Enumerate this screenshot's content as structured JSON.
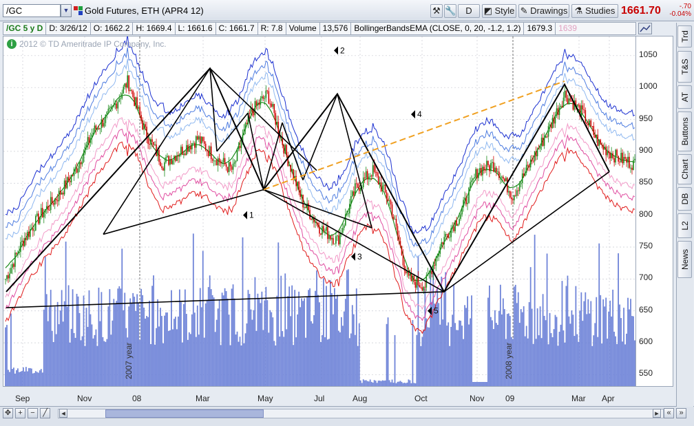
{
  "toolbar": {
    "symbol": "/GC",
    "description": "Gold Futures, ETH (APR4 12)",
    "d_button": "D",
    "style_label": "Style",
    "drawings_label": "Drawings",
    "studies_label": "Studies",
    "last_price": "1661.70",
    "change": "-.70",
    "change_pct": "-0.04%"
  },
  "infobar": {
    "chart_id": "/GC 5 y D",
    "date": "D: 3/26/12",
    "open": "O: 1662.2",
    "high": "H: 1669.4",
    "low": "L: 1661.6",
    "close": "C: 1661.7",
    "range": "R: 7.8",
    "volume_label": "Volume",
    "volume_value": "13,576",
    "study": "BollingerBandsEMA (CLOSE, 0, 20, -1.2, 1.2)",
    "study_val1": "1679.3",
    "study_val2": "1639"
  },
  "chart": {
    "copyright": "2012 © TD Ameritrade IP Company, Inc.",
    "y_labels": [
      "1050",
      "1000",
      "950",
      "900",
      "850",
      "800",
      "750",
      "700",
      "650",
      "600",
      "550"
    ],
    "x_labels": [
      "Sep",
      "Nov",
      "08",
      "Mar",
      "May",
      "Jul",
      "Aug",
      "Oct",
      "Nov",
      "09",
      "Mar",
      "Apr"
    ],
    "year_marks": [
      "2007 year",
      "2008 year"
    ],
    "wave_markers": [
      "1",
      "2",
      "3",
      "4",
      "5"
    ],
    "colors": {
      "up": "#1a8a1a",
      "down": "#d00000",
      "volume": "#6f84d8",
      "trend": "#000000",
      "projection": "#f0a020"
    }
  },
  "chart_data": {
    "type": "candlestick",
    "ylim": [
      530,
      1080
    ],
    "closes": [
      700,
      760,
      800,
      830,
      870,
      930,
      960,
      1010,
      930,
      880,
      900,
      920,
      890,
      870,
      960,
      990,
      900,
      820,
      780,
      760,
      840,
      870,
      820,
      700,
      690,
      760,
      800,
      870,
      880,
      830,
      880,
      930,
      990,
      960,
      910,
      890,
      880
    ]
  },
  "side_tabs": [
    "Trd",
    "T&S",
    "AT",
    "Buttons",
    "Chart",
    "DB",
    "L2",
    "News"
  ]
}
